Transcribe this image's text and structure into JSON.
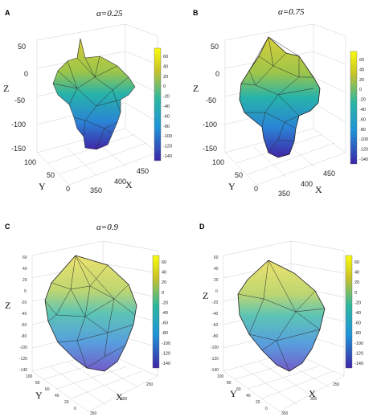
{
  "panels": [
    {
      "label": "A",
      "title": "α=0.25",
      "z_ticks": [
        "50",
        "0",
        "-50",
        "-100",
        "-150"
      ],
      "y_ticks": [
        "100",
        "50",
        "0"
      ],
      "x_ticks": [
        "350",
        "400",
        "450"
      ],
      "axis_labels": {
        "z": "Z",
        "y": "Y",
        "x": "X"
      },
      "colorbar_ticks": [
        "60",
        "40",
        "20",
        "0",
        "-20",
        "-40",
        "-60",
        "-80",
        "-100",
        "-120",
        "-140"
      ]
    },
    {
      "label": "B",
      "title": "α=0.75",
      "z_ticks": [
        "50",
        "0",
        "-50",
        "-100",
        "-150"
      ],
      "y_ticks": [
        "100",
        "50",
        "0"
      ],
      "x_ticks": [
        "350",
        "400",
        "450"
      ],
      "axis_labels": {
        "z": "Z",
        "y": "Y",
        "x": "X"
      },
      "colorbar_ticks": [
        "60",
        "40",
        "20",
        "0",
        "-20",
        "-40",
        "-60",
        "-80",
        "-100",
        "-120",
        "-140"
      ]
    },
    {
      "label": "C",
      "title": "α=0.9",
      "z_ticks": [
        "60",
        "40",
        "20",
        "0",
        "-20",
        "-40",
        "-60",
        "-80",
        "-100",
        "-120",
        "-140"
      ],
      "y_ticks": [
        "100",
        "80",
        "60",
        "40",
        "20",
        "0"
      ],
      "x_ticks": [
        "350",
        "300",
        "250"
      ],
      "axis_labels": {
        "z": "Z",
        "y": "Y",
        "x": "X"
      },
      "colorbar_ticks": [
        "60",
        "40",
        "20",
        "0",
        "-20",
        "-40",
        "-60",
        "-80",
        "-100",
        "-120",
        "-140"
      ]
    },
    {
      "label": "D",
      "title": "",
      "z_ticks": [
        "60",
        "40",
        "20",
        "0",
        "-20",
        "-40",
        "-60",
        "-80",
        "-100",
        "-120",
        "-140"
      ],
      "y_ticks": [
        "100",
        "80",
        "60",
        "40",
        "20",
        "0"
      ],
      "x_ticks": [
        "350",
        "300",
        "250"
      ],
      "axis_labels": {
        "z": "Z",
        "y": "Y",
        "x": "X"
      },
      "colorbar_ticks": [
        "60",
        "40",
        "20",
        "0",
        "-20",
        "-40",
        "-60",
        "-80",
        "-100",
        "-120",
        "-140"
      ]
    }
  ],
  "colors": {
    "top": "#f5e02a",
    "upper": "#b9c93a",
    "middle": "#2db6a8",
    "lower": "#2a8fd2",
    "bottom": "#3a2db2"
  }
}
